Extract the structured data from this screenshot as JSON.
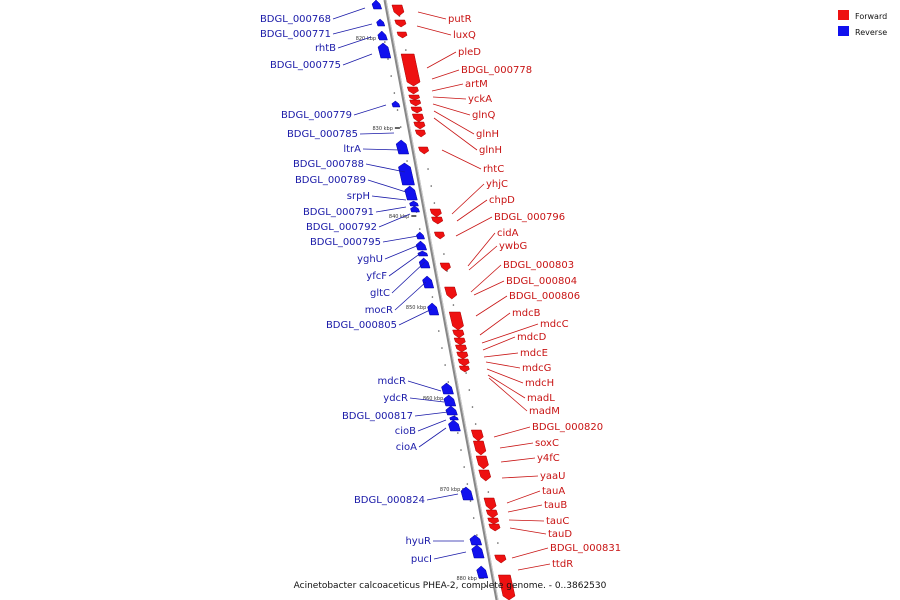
{
  "caption": "Acinetobacter calcoaceticus PHEA-2, complete genome. - 0..3862530",
  "legend": [
    {
      "label": "Forward",
      "color": "#ee1111"
    },
    {
      "label": "Reverse",
      "color": "#1111ee"
    }
  ],
  "colors": {
    "forward_gene": "#ee1111",
    "reverse_gene": "#1111ee",
    "forward_label": "#c81414",
    "reverse_label": "#1a1aa8",
    "axis": "#888888"
  },
  "ticks": [
    "820 kbp",
    "830 kbp",
    "840 kbp",
    "850 kbp",
    "860 kbp",
    "870 kbp",
    "880 kbp"
  ],
  "reverse_labels": [
    "BDGL_000768",
    "BDGL_000771",
    "rhtB",
    "BDGL_000775",
    "BDGL_000779",
    "BDGL_000785",
    "ltrA",
    "BDGL_000788",
    "BDGL_000789",
    "srpH",
    "BDGL_000791",
    "BDGL_000792",
    "BDGL_000795",
    "yghU",
    "yfcF",
    "gltC",
    "mocR",
    "BDGL_000805",
    "mdcR",
    "ydcR",
    "BDGL_000817",
    "cioB",
    "cioA",
    "BDGL_000824",
    "hyuR",
    "pucI"
  ],
  "forward_labels": [
    "putR",
    "luxQ",
    "pleD",
    "BDGL_000778",
    "artM",
    "yckA",
    "glnQ",
    "glnH",
    "glnH",
    "rhtC",
    "yhjC",
    "chpD",
    "BDGL_000796",
    "cidA",
    "ywbG",
    "BDGL_000803",
    "BDGL_000804",
    "BDGL_000806",
    "mdcB",
    "mdcC",
    "mdcD",
    "mdcE",
    "mdcG",
    "mdcH",
    "madL",
    "madM",
    "BDGL_000820",
    "soxC",
    "y4fC",
    "yaaU",
    "tauA",
    "tauB",
    "tauC",
    "tauD",
    "BDGL_000831",
    "ttdR"
  ]
}
